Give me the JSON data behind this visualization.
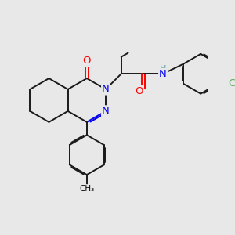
{
  "bg_color": "#e8e8e8",
  "bond_color": "#1a1a1a",
  "bond_width": 1.4,
  "figsize": [
    3.0,
    3.0
  ],
  "dpi": 100,
  "atom_colors": {
    "N": "#0000ee",
    "O": "#ff0000",
    "H": "#5f9ea0",
    "Cl": "#5aad5a"
  },
  "xlim": [
    0,
    12
  ],
  "ylim": [
    0,
    12
  ]
}
